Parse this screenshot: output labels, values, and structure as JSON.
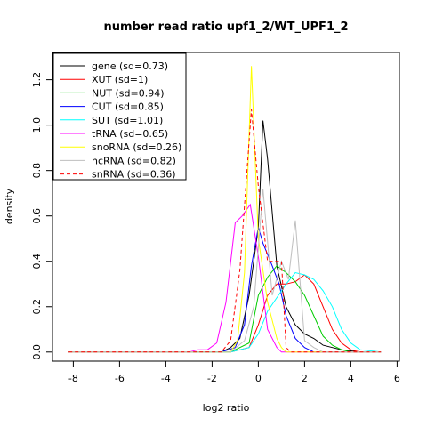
{
  "chart_data": {
    "type": "line",
    "title": "number read ratio upf1_2/WT_UPF1_2",
    "xlabel": "log2 ratio",
    "ylabel": "density",
    "xlim": [
      -8.9,
      6.1
    ],
    "ylim": [
      -0.04,
      1.32
    ],
    "x_ticks": [
      -8,
      -6,
      -4,
      -2,
      0,
      2,
      4,
      6
    ],
    "x_tick_labels": [
      "-8",
      "-6",
      "-4",
      "-2",
      "0",
      "2",
      "4",
      "6"
    ],
    "y_ticks": [
      0.0,
      0.2,
      0.4,
      0.6,
      0.8,
      1.0,
      1.2
    ],
    "y_tick_labels": [
      "0.0",
      "0.2",
      "0.4",
      "0.6",
      "0.8",
      "1.0",
      "1.2"
    ],
    "grid": false,
    "legend_position": "top-left",
    "series": [
      {
        "name": "gene (sd=0.73)",
        "color": "#000000",
        "dash": "solid",
        "x": [
          -8.2,
          -1.6,
          -1.2,
          -0.8,
          -0.4,
          0.0,
          0.2,
          0.4,
          0.8,
          1.2,
          1.6,
          2.0,
          2.4,
          2.8,
          3.2,
          3.6,
          4.0,
          4.4
        ],
        "y": [
          0.0,
          0.0,
          0.02,
          0.06,
          0.25,
          0.55,
          1.02,
          0.85,
          0.38,
          0.2,
          0.12,
          0.08,
          0.06,
          0.03,
          0.02,
          0.01,
          0.005,
          0.0
        ]
      },
      {
        "name": "XUT (sd=1)",
        "color": "#ff0000",
        "dash": "solid",
        "x": [
          -8.2,
          -1.2,
          -0.4,
          0.0,
          0.4,
          0.8,
          1.2,
          1.6,
          2.0,
          2.4,
          2.8,
          3.2,
          3.6,
          4.0,
          4.4,
          5.3
        ],
        "y": [
          0.0,
          0.0,
          0.02,
          0.12,
          0.25,
          0.3,
          0.3,
          0.31,
          0.34,
          0.3,
          0.2,
          0.1,
          0.04,
          0.01,
          0.0,
          0.0
        ]
      },
      {
        "name": "NUT (sd=0.94)",
        "color": "#00cc00",
        "dash": "solid",
        "x": [
          -8.2,
          -1.2,
          -0.4,
          0.0,
          0.4,
          0.8,
          1.2,
          1.6,
          2.0,
          2.4,
          2.8,
          3.2,
          3.6,
          4.0,
          5.3
        ],
        "y": [
          0.0,
          0.0,
          0.04,
          0.25,
          0.33,
          0.38,
          0.35,
          0.31,
          0.25,
          0.16,
          0.07,
          0.03,
          0.01,
          0.0,
          0.0
        ]
      },
      {
        "name": "CUT (sd=0.85)",
        "color": "#0000ff",
        "dash": "solid",
        "x": [
          -8.2,
          -1.6,
          -1.0,
          -0.6,
          -0.3,
          0.0,
          0.2,
          0.6,
          0.9,
          1.2,
          1.6,
          2.0,
          2.4,
          3.0,
          5.3
        ],
        "y": [
          0.0,
          0.0,
          0.02,
          0.12,
          0.38,
          0.55,
          0.48,
          0.38,
          0.3,
          0.16,
          0.06,
          0.02,
          0.0,
          0.0,
          0.0
        ]
      },
      {
        "name": "SUT (sd=1.01)",
        "color": "#00ffff",
        "dash": "solid",
        "x": [
          -8.2,
          -1.2,
          -0.4,
          0.0,
          0.4,
          0.8,
          1.2,
          1.6,
          2.0,
          2.4,
          2.8,
          3.2,
          3.6,
          4.0,
          4.4,
          5.3
        ],
        "y": [
          0.0,
          0.0,
          0.02,
          0.08,
          0.18,
          0.24,
          0.3,
          0.35,
          0.34,
          0.32,
          0.27,
          0.2,
          0.1,
          0.04,
          0.01,
          0.0
        ]
      },
      {
        "name": "tRNA (sd=0.65)",
        "color": "#ff00ff",
        "dash": "solid",
        "x": [
          -8.2,
          -3.0,
          -2.6,
          -2.2,
          -1.8,
          -1.4,
          -1.0,
          -0.7,
          -0.35,
          0.0,
          0.4,
          0.8,
          1.0,
          1.2,
          5.3
        ],
        "y": [
          0.0,
          0.0,
          0.01,
          0.01,
          0.04,
          0.22,
          0.57,
          0.6,
          0.65,
          0.42,
          0.1,
          0.02,
          0.0,
          0.0,
          0.0
        ]
      },
      {
        "name": "snoRNA (sd=0.26)",
        "color": "#ffff00",
        "dash": "solid",
        "x": [
          -8.2,
          -1.2,
          -0.9,
          -0.6,
          -0.3,
          0.0,
          0.4,
          0.8,
          1.0,
          1.2,
          1.6,
          5.3
        ],
        "y": [
          0.0,
          0.0,
          0.05,
          0.35,
          1.26,
          0.5,
          0.22,
          0.06,
          0.02,
          0.0,
          0.0,
          0.0
        ]
      },
      {
        "name": "ncRNA (sd=0.82)",
        "color": "#bebebe",
        "dash": "solid",
        "x": [
          -8.2,
          -1.2,
          -0.6,
          -0.2,
          0.2,
          0.6,
          1.0,
          1.3,
          1.6,
          2.0,
          2.4,
          2.8,
          3.2,
          3.6,
          4.0,
          5.3
        ],
        "y": [
          0.0,
          0.0,
          0.05,
          0.2,
          0.72,
          0.25,
          0.4,
          0.32,
          0.58,
          0.05,
          0.02,
          0.0,
          0.0,
          0.0,
          0.0,
          0.0
        ]
      },
      {
        "name": "snRNA (sd=0.36)",
        "color": "#ff0000",
        "dash": "dashed",
        "x": [
          -8.2,
          -1.6,
          -1.2,
          -0.8,
          -0.3,
          0.0,
          0.4,
          0.8,
          1.0,
          1.2,
          1.4,
          5.3
        ],
        "y": [
          0.0,
          0.0,
          0.05,
          0.36,
          1.07,
          0.73,
          0.4,
          0.4,
          0.4,
          0.02,
          0.0,
          0.0
        ]
      }
    ]
  }
}
